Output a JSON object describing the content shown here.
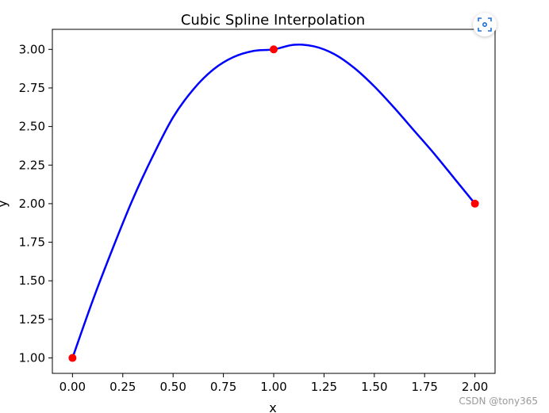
{
  "chart_data": {
    "type": "line",
    "title": "Cubic Spline Interpolation",
    "xlabel": "x",
    "ylabel": "y",
    "xlim": [
      -0.1,
      2.1
    ],
    "ylim": [
      0.9,
      3.13
    ],
    "x_ticks": [
      "0.00",
      "0.25",
      "0.50",
      "0.75",
      "1.00",
      "1.25",
      "1.50",
      "1.75",
      "2.00"
    ],
    "y_ticks": [
      "1.00",
      "1.25",
      "1.50",
      "1.75",
      "2.00",
      "2.25",
      "2.50",
      "2.75",
      "3.00"
    ],
    "grid": false,
    "series": [
      {
        "kind": "curve",
        "color": "#0000ff",
        "x": [
          0.0,
          0.1,
          0.2,
          0.3,
          0.4,
          0.5,
          0.6,
          0.7,
          0.8,
          0.9,
          1.0,
          1.1,
          1.2,
          1.3,
          1.4,
          1.5,
          1.6,
          1.7,
          1.8,
          1.9,
          2.0
        ],
        "y": [
          1.0,
          1.37,
          1.71,
          2.03,
          2.31,
          2.56,
          2.74,
          2.87,
          2.95,
          2.99,
          3.0,
          3.03,
          3.02,
          2.97,
          2.88,
          2.76,
          2.62,
          2.47,
          2.32,
          2.16,
          2.0
        ]
      },
      {
        "kind": "points",
        "color": "#ff0000",
        "x": [
          0,
          1,
          2
        ],
        "y": [
          1,
          3,
          2
        ]
      }
    ]
  },
  "watermark": "CSDN @tony365",
  "toolbar": {
    "scan_icon": "scan-icon"
  }
}
